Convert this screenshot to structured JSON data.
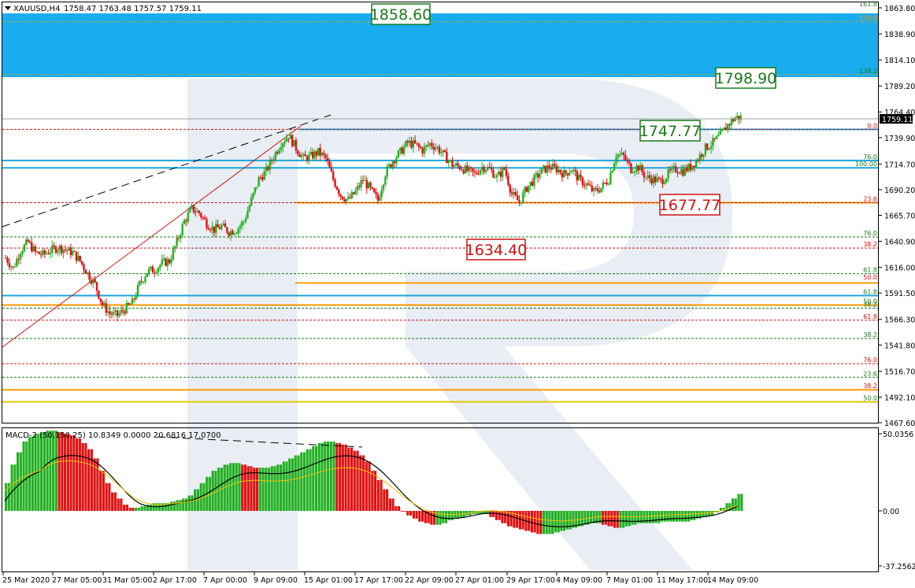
{
  "header": {
    "symbol": "XAUUSD,H4",
    "ohlc": "1758.47 1763.48 1757.57 1759.11",
    "arrow": "down-triangle-icon"
  },
  "price_axis": {
    "ticks": [
      "1863.80",
      "1838.90",
      "1814.10",
      "1789.20",
      "1764.40",
      "1739.90",
      "1714.70",
      "1690.20",
      "1665.70",
      "1640.90",
      "1616.00",
      "1591.50",
      "1566.30",
      "1541.80",
      "1516.70",
      "1492.10",
      "1467.60"
    ],
    "current_price": "1759.11"
  },
  "macd": {
    "label": "MACD-2 (50,150,25) 10.8349 0.0000 20.6816 17.0700",
    "ticks": [
      "50.0356",
      "0.00",
      "-37.2562"
    ]
  },
  "time_axis": [
    "25 Mar 2020",
    "27 Mar 05:00",
    "31 Mar 05:00",
    "2 Apr 17:00",
    "7 Apr 00:00",
    "9 Apr 09:00",
    "15 Apr 01:00",
    "17 Apr 17:00",
    "22 Apr 09:00",
    "27 Apr 01:00",
    "29 Apr 17:00",
    "4 May 09:00",
    "7 May 01:00",
    "11 May 17:00",
    "14 May 09:00"
  ],
  "callouts": [
    {
      "text": "1858.60",
      "color": "#1a7a1a"
    },
    {
      "text": "1798.90",
      "color": "#1a7a1a"
    },
    {
      "text": "1747.77",
      "color": "#1a7a1a"
    },
    {
      "text": "1677.77",
      "color": "#d01010"
    },
    {
      "text": "1634.40",
      "color": "#d01010"
    }
  ],
  "fib_labels": [
    {
      "text": "161.8",
      "price": 1863.8,
      "color": "#1a7a1a"
    },
    {
      "text": "150.0",
      "price": 1850.5,
      "color": "#e0a000"
    },
    {
      "text": "138.2",
      "price": 1800.0,
      "color": "#1a7a1a"
    },
    {
      "text": "0.0",
      "price": 1747.77,
      "color": "#d01010"
    },
    {
      "text": "76.0",
      "price": 1718.0,
      "color": "#1a7a1a"
    },
    {
      "text": "100.00",
      "price": 1711.0,
      "color": "#1a7a1a"
    },
    {
      "text": "23.6",
      "price": 1677.77,
      "color": "#d01010"
    },
    {
      "text": "76.0",
      "price": 1645.0,
      "color": "#1a7a1a"
    },
    {
      "text": "38.2",
      "price": 1634.4,
      "color": "#d01010"
    },
    {
      "text": "61.8",
      "price": 1610.0,
      "color": "#1a7a1a"
    },
    {
      "text": "50.0",
      "price": 1603.0,
      "color": "#d01010"
    },
    {
      "text": "61.8",
      "price": 1589.0,
      "color": "#1a7a1a"
    },
    {
      "text": "50.0",
      "price": 1580.0,
      "color": "#1a7a1a"
    },
    {
      "text": "38.2",
      "price": 1577.0,
      "color": "#1a7a1a"
    },
    {
      "text": "61.8",
      "price": 1565.5,
      "color": "#d01010"
    },
    {
      "text": "38.2",
      "price": 1548.0,
      "color": "#1a7a1a"
    },
    {
      "text": "76.0",
      "price": 1524.0,
      "color": "#d01010"
    },
    {
      "text": "23.6",
      "price": 1511.0,
      "color": "#1a7a1a"
    },
    {
      "text": "38.2",
      "price": 1499.0,
      "color": "#d01010"
    },
    {
      "text": "50.0",
      "price": 1487.5,
      "color": "#1a7a1a"
    }
  ],
  "colors": {
    "bull": "#22b022",
    "bear": "#e01010",
    "zone": "#19adf0",
    "fib_blue": "#19a6d9",
    "fib_orange": "#ff9a00",
    "signal": "#f2c200",
    "macd_line": "#000000"
  },
  "chart_data": {
    "type": "candlestick",
    "symbol": "XAUUSD",
    "timeframe": "H4",
    "ylim": [
      1467.6,
      1870
    ],
    "close_path": [
      1625,
      1615,
      1632,
      1640,
      1630,
      1628,
      1632,
      1635,
      1633,
      1630,
      1622,
      1610,
      1600,
      1580,
      1572,
      1570,
      1576,
      1582,
      1600,
      1612,
      1614,
      1620,
      1622,
      1640,
      1660,
      1672,
      1668,
      1658,
      1652,
      1655,
      1650,
      1652,
      1660,
      1680,
      1700,
      1708,
      1722,
      1735,
      1742,
      1730,
      1720,
      1722,
      1726,
      1720,
      1700,
      1685,
      1680,
      1688,
      1700,
      1690,
      1680,
      1706,
      1718,
      1726,
      1735,
      1733,
      1728,
      1734,
      1730,
      1722,
      1714,
      1712,
      1708,
      1705,
      1712,
      1710,
      1702,
      1710,
      1686,
      1678,
      1692,
      1700,
      1708,
      1712,
      1710,
      1705,
      1710,
      1700,
      1695,
      1688,
      1692,
      1700,
      1724,
      1722,
      1710,
      1712,
      1702,
      1700,
      1698,
      1705,
      1710,
      1708,
      1712,
      1720,
      1730,
      1735,
      1742,
      1752,
      1759.11
    ],
    "macd_hist": [
      18,
      30,
      38,
      45,
      48,
      50,
      51,
      52,
      52,
      51,
      50,
      49,
      47,
      44,
      40,
      34,
      26,
      18,
      12,
      8,
      4,
      2,
      2,
      3,
      4,
      5,
      5,
      5,
      6,
      7,
      8,
      10,
      14,
      18,
      22,
      26,
      28,
      30,
      31,
      31,
      30,
      29,
      28,
      28,
      28,
      29,
      30,
      32,
      34,
      36,
      38,
      40,
      42,
      44,
      45,
      45,
      44,
      43,
      41,
      39,
      36,
      32,
      26,
      20,
      14,
      8,
      3,
      0,
      -3,
      -5,
      -7,
      -8,
      -9,
      -9,
      -8,
      -6,
      -5,
      -4,
      -3,
      -2,
      -2,
      -2,
      -4,
      -6,
      -8,
      -10,
      -11,
      -12,
      -13,
      -14,
      -15,
      -15,
      -15,
      -14,
      -13,
      -12,
      -11,
      -10,
      -9,
      -8,
      -8,
      -9,
      -10,
      -11,
      -11,
      -10,
      -9,
      -8,
      -8,
      -8,
      -8,
      -7,
      -7,
      -7,
      -7,
      -7,
      -6,
      -5,
      -4,
      -3,
      -1,
      2,
      5,
      8,
      11
    ],
    "macd_hist_colors": "rising green, falling red",
    "annotations": [
      "1858.60",
      "1798.90",
      "1747.77",
      "1677.77",
      "1634.40"
    ]
  }
}
